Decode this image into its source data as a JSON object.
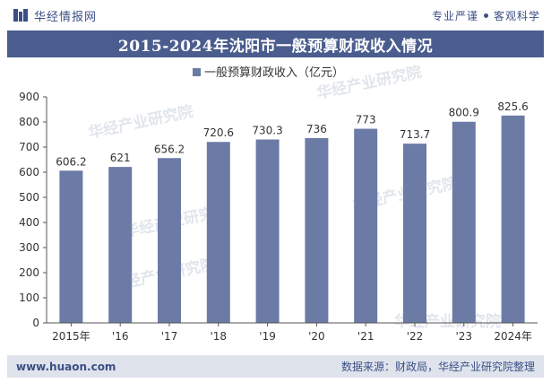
{
  "header": {
    "brand": "华经情报网",
    "tag_left": "专业严谨",
    "tag_right": "客观科学"
  },
  "title": "2015-2024年沈阳市一般预算财政收入情况",
  "watermark": "华经产业研究院",
  "footer": {
    "website": "www.huaon.com",
    "source": "数据来源：财政局，华经产业研究院整理"
  },
  "colors": {
    "bar": "#6b7ba6",
    "title_bg": "#4a5d8e",
    "brand": "#3b4f86",
    "footer_bg": "#dfe3ec"
  },
  "chart_data": {
    "type": "bar",
    "title": "2015-2024年沈阳市一般预算财政收入情况",
    "categories": [
      "2015年",
      "'16",
      "'17",
      "'18",
      "'19",
      "'20",
      "'21",
      "'22",
      "'23",
      "2024年"
    ],
    "series": [
      {
        "name": "一般预算财政收入（亿元）",
        "values": [
          606.2,
          621,
          656.2,
          720.6,
          730.3,
          736,
          773,
          713.7,
          800.9,
          825.6
        ],
        "labels": [
          "606.2",
          "621",
          "656.2",
          "720.6",
          "730.3",
          "736",
          "773",
          "713.7",
          "800.9",
          "825.6"
        ]
      }
    ],
    "ylim": [
      0,
      900
    ],
    "yticks": [
      0,
      100,
      200,
      300,
      400,
      500,
      600,
      700,
      800,
      900
    ],
    "grid": false,
    "legend": "top-center"
  }
}
